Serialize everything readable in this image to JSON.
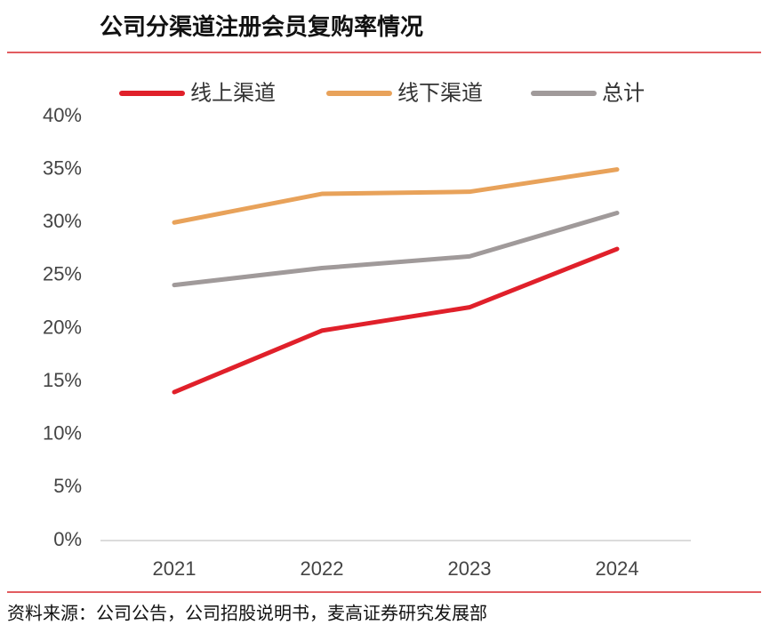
{
  "chart_data": {
    "type": "line",
    "title": "公司分渠道注册会员复购率情况",
    "source": "资料来源：公司公告，公司招股说明书，麦高证券研究发展部",
    "categories": [
      "2021",
      "2022",
      "2023",
      "2024"
    ],
    "series": [
      {
        "name": "线上渠道",
        "color": "#e0202a",
        "values": [
          14.0,
          19.8,
          22.0,
          27.5
        ]
      },
      {
        "name": "线下渠道",
        "color": "#e8a25a",
        "values": [
          30.0,
          32.7,
          32.9,
          35.0
        ]
      },
      {
        "name": "总计",
        "color": "#a09a9a",
        "values": [
          24.1,
          25.7,
          26.8,
          30.9
        ]
      }
    ],
    "ylim": [
      0,
      40
    ],
    "yticks": [
      {
        "value": 0,
        "label": "0%"
      },
      {
        "value": 5,
        "label": "5%"
      },
      {
        "value": 10,
        "label": "10%"
      },
      {
        "value": 15,
        "label": "15%"
      },
      {
        "value": 20,
        "label": "20%"
      },
      {
        "value": 25,
        "label": "25%"
      },
      {
        "value": 30,
        "label": "30%"
      },
      {
        "value": 35,
        "label": "35%"
      },
      {
        "value": 40,
        "label": "40%"
      }
    ],
    "grid": false,
    "legend": "top"
  }
}
